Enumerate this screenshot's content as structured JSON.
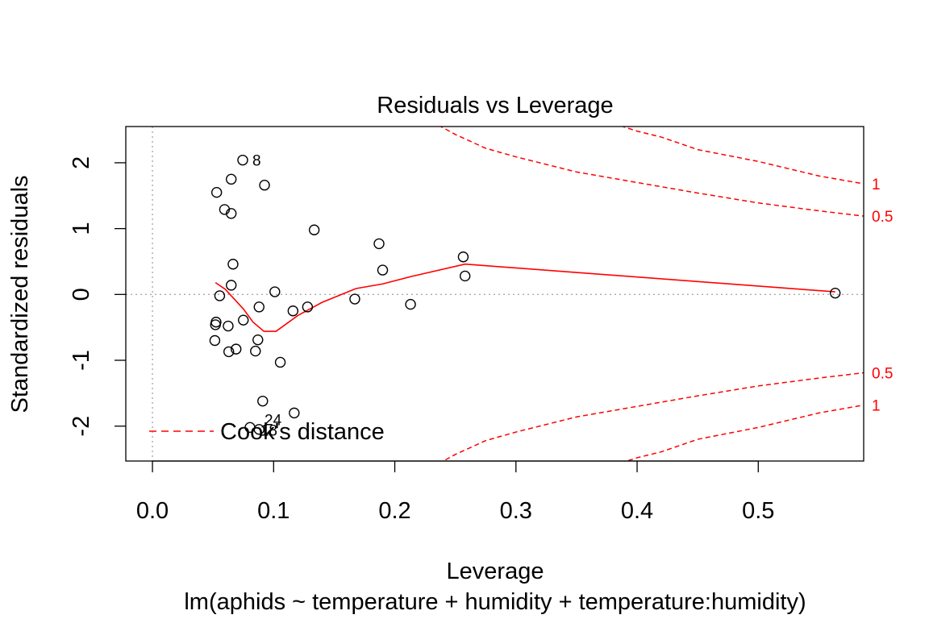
{
  "chart_data": {
    "type": "scatter",
    "title": "Residuals vs Leverage",
    "xlabel": "Leverage",
    "sublabel": "lm(aphids ~ temperature + humidity + temperature:humidity)",
    "ylabel": "Standardized residuals",
    "xlim": [
      -0.022,
      0.587
    ],
    "ylim": [
      -2.53,
      2.55
    ],
    "xticks": [
      "0.0",
      "0.1",
      "0.2",
      "0.3",
      "0.4",
      "0.5"
    ],
    "xtick_values": [
      0,
      0.1,
      0.2,
      0.3,
      0.4,
      0.5
    ],
    "yticks": [
      "-2",
      "-1",
      "0",
      "1",
      "2"
    ],
    "ytick_values": [
      -2,
      -1,
      0,
      1,
      2
    ],
    "grid": false,
    "reference_lines": {
      "x": 0,
      "y": 0,
      "color": "#aaaaaa",
      "style": "dotted"
    },
    "points": [
      {
        "x": 0.0745,
        "y": 2.04
      },
      {
        "x": 0.065,
        "y": 1.75
      },
      {
        "x": 0.0925,
        "y": 1.66
      },
      {
        "x": 0.053,
        "y": 1.55
      },
      {
        "x": 0.0595,
        "y": 1.29
      },
      {
        "x": 0.065,
        "y": 1.23
      },
      {
        "x": 0.1335,
        "y": 0.98
      },
      {
        "x": 0.187,
        "y": 0.77
      },
      {
        "x": 0.2565,
        "y": 0.57
      },
      {
        "x": 0.0665,
        "y": 0.46
      },
      {
        "x": 0.19,
        "y": 0.37
      },
      {
        "x": 0.258,
        "y": 0.28
      },
      {
        "x": 0.065,
        "y": 0.14
      },
      {
        "x": 0.101,
        "y": 0.04
      },
      {
        "x": 0.5635,
        "y": 0.02
      },
      {
        "x": 0.0555,
        "y": -0.02
      },
      {
        "x": 0.167,
        "y": -0.07
      },
      {
        "x": 0.213,
        "y": -0.15
      },
      {
        "x": 0.088,
        "y": -0.19
      },
      {
        "x": 0.128,
        "y": -0.19
      },
      {
        "x": 0.116,
        "y": -0.25
      },
      {
        "x": 0.075,
        "y": -0.39
      },
      {
        "x": 0.0525,
        "y": -0.42
      },
      {
        "x": 0.052,
        "y": -0.46
      },
      {
        "x": 0.0625,
        "y": -0.48
      },
      {
        "x": 0.087,
        "y": -0.69
      },
      {
        "x": 0.0515,
        "y": -0.7
      },
      {
        "x": 0.069,
        "y": -0.83
      },
      {
        "x": 0.085,
        "y": -0.86
      },
      {
        "x": 0.063,
        "y": -0.87
      },
      {
        "x": 0.1055,
        "y": -1.03
      },
      {
        "x": 0.091,
        "y": -1.62
      },
      {
        "x": 0.117,
        "y": -1.8
      },
      {
        "x": 0.0805,
        "y": -2.02
      },
      {
        "x": 0.088,
        "y": -2.05
      }
    ],
    "point_labels": [
      {
        "text": "8",
        "x": 0.0825,
        "y": 2.04
      },
      {
        "text": "24",
        "x": 0.0925,
        "y": -1.9
      },
      {
        "text": "18",
        "x": 0.089,
        "y": -2.06
      }
    ],
    "smooth_line": {
      "color": "#ff0000",
      "x": [
        0.052,
        0.06,
        0.067,
        0.075,
        0.083,
        0.092,
        0.102,
        0.12,
        0.14,
        0.168,
        0.19,
        0.213,
        0.258,
        0.5635
      ],
      "y": [
        0.18,
        0.08,
        -0.06,
        -0.22,
        -0.42,
        -0.56,
        -0.56,
        -0.32,
        -0.12,
        0.09,
        0.16,
        0.27,
        0.46,
        0.04
      ]
    },
    "cooks_distance": {
      "color": "#ff0000",
      "style": "dashed",
      "levels": [
        "1",
        "0.5"
      ],
      "curves": [
        {
          "level": "0.5",
          "side": "upper",
          "x": [
            0.236,
            0.25,
            0.275,
            0.3,
            0.35,
            0.4,
            0.45,
            0.5,
            0.55,
            0.587
          ],
          "y": [
            2.57,
            2.43,
            2.22,
            2.09,
            1.86,
            1.7,
            1.54,
            1.39,
            1.27,
            1.19
          ]
        },
        {
          "level": "0.5",
          "side": "lower",
          "x": [
            0.236,
            0.25,
            0.275,
            0.3,
            0.35,
            0.4,
            0.45,
            0.5,
            0.55,
            0.587
          ],
          "y": [
            -2.57,
            -2.43,
            -2.22,
            -2.09,
            -1.86,
            -1.7,
            -1.54,
            -1.39,
            -1.27,
            -1.19
          ]
        },
        {
          "level": "1",
          "side": "upper",
          "x": [
            0.38,
            0.4,
            0.42,
            0.45,
            0.5,
            0.55,
            0.587
          ],
          "y": [
            2.6,
            2.48,
            2.39,
            2.2,
            2.02,
            1.8,
            1.68
          ]
        },
        {
          "level": "1",
          "side": "lower",
          "x": [
            0.38,
            0.4,
            0.42,
            0.45,
            0.5,
            0.55,
            0.587
          ],
          "y": [
            -2.6,
            -2.48,
            -2.39,
            -2.2,
            -2.02,
            -1.8,
            -1.68
          ]
        }
      ]
    },
    "legend": {
      "label": "Cook's distance",
      "placement": "bottom-left"
    }
  }
}
